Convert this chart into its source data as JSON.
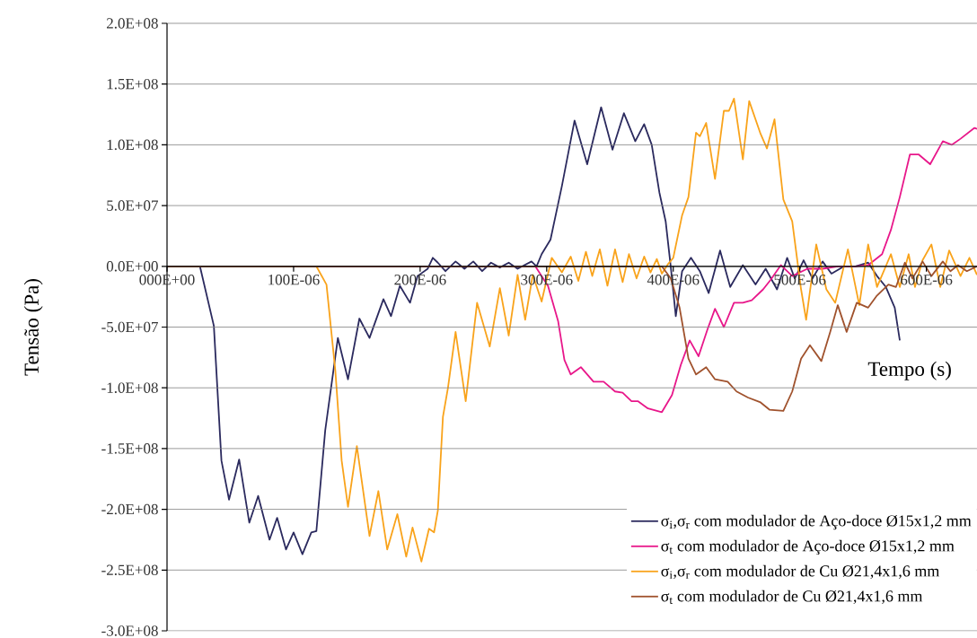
{
  "chart_data": {
    "type": "line",
    "xlabel": "Tempo (s)",
    "ylabel": "Tensão (Pa)",
    "xlim": [
      0,
      0.00064
    ],
    "ylim": [
      -300000000.0,
      200000000.0
    ],
    "xticks": [
      {
        "value": 0,
        "label": "000E+00"
      },
      {
        "value": 0.0001,
        "label": "100E-06"
      },
      {
        "value": 0.0002,
        "label": "200E-06"
      },
      {
        "value": 0.0003,
        "label": "300E-06"
      },
      {
        "value": 0.0004,
        "label": "400E-06"
      },
      {
        "value": 0.0005,
        "label": "500E-06"
      },
      {
        "value": 0.0006,
        "label": "600E-06"
      }
    ],
    "yticks": [
      {
        "value": -300000000.0,
        "label": "-3.0E+08"
      },
      {
        "value": -250000000.0,
        "label": "-2.5E+08"
      },
      {
        "value": -200000000.0,
        "label": "-2.0E+08"
      },
      {
        "value": -150000000.0,
        "label": "-1.5E+08"
      },
      {
        "value": -100000000.0,
        "label": "-1.0E+08"
      },
      {
        "value": -50000000.0,
        "label": "-5.0E+07"
      },
      {
        "value": 0,
        "label": "0.0E+00"
      },
      {
        "value": 50000000.0,
        "label": "5.0E+07"
      },
      {
        "value": 100000000.0,
        "label": "1.0E+08"
      },
      {
        "value": 150000000.0,
        "label": "1.5E+08"
      },
      {
        "value": 200000000.0,
        "label": "2.0E+08"
      }
    ],
    "grid": "y",
    "legend": "bottom right",
    "series": [
      {
        "name": "σ$_{i}$,σ$_{r}$  com modulador de Aço-doce Ø15x1,2 mm",
        "color": "#2b2a5e",
        "x": [
          0.0,
          2.6e-05,
          3.7e-05,
          4.3e-05,
          4.9e-05,
          5.7e-05,
          6.5e-05,
          7.2e-05,
          8.1e-05,
          8.7e-05,
          9.4e-05,
          0.0001,
          0.000107,
          0.000114,
          0.000118,
          0.000125,
          0.000135,
          0.000143,
          0.000152,
          0.00016,
          0.000171,
          0.000177,
          0.000184,
          0.000192,
          0.000198,
          0.000206,
          0.00021,
          0.000214,
          0.00022,
          0.000228,
          0.000235,
          0.000242,
          0.000249,
          0.000256,
          0.000263,
          0.00027,
          0.000277,
          0.000288,
          0.000292,
          0.000296,
          0.000303,
          0.000312,
          0.000322,
          0.000332,
          0.000343,
          0.000352,
          0.000361,
          0.00037,
          0.000377,
          0.000383,
          0.000389,
          0.000394,
          0.000398,
          0.000402,
          0.000407,
          0.000414,
          0.000421,
          0.000428,
          0.000437,
          0.000445,
          0.000455,
          0.000465,
          0.000473,
          0.000482,
          0.00049,
          0.000496,
          0.000503,
          0.00051,
          0.000518,
          0.000525,
          0.000535,
          0.000544,
          0.000554,
          0.000561,
          0.000568,
          0.000575,
          0.000579
        ],
        "values": [
          0,
          0,
          -49000000.0,
          -160000000.0,
          -192000000.0,
          -159000000.0,
          -211000000.0,
          -189000000.0,
          -225000000.0,
          -207000000.0,
          -233000000.0,
          -219000000.0,
          -237000000.0,
          -219000000.0,
          -218000000.0,
          -135000000.0,
          -59000000.0,
          -93000000.0,
          -43000000.0,
          -59000000.0,
          -27000000.0,
          -41000000.0,
          -16000000.0,
          -30000000.0,
          -8000000.0,
          -2000000.0,
          7000000.0,
          3000000.0,
          -4000000.0,
          4000000.0,
          -2000000.0,
          4000000.0,
          -4000000.0,
          3000000.0,
          -1000000.0,
          3000000.0,
          -2000000.0,
          4000000.0,
          0,
          10000000.0,
          22000000.0,
          66000000.0,
          120000000.0,
          84000000.0,
          131000000.0,
          96000000.0,
          126000000.0,
          103000000.0,
          117000000.0,
          100000000.0,
          61000000.0,
          37000000.0,
          0,
          -41000000.0,
          -4000000.0,
          7000000.0,
          -4000000.0,
          -22000000.0,
          13000000.0,
          -17000000.0,
          1000000.0,
          -15000000.0,
          -2000000.0,
          -19000000.0,
          7000000.0,
          -10000000.0,
          5000000.0,
          -10000000.0,
          4000000.0,
          -6000000.0,
          0,
          0,
          3000000.0,
          -8000000.0,
          -17000000.0,
          -34000000.0,
          -61000000.0
        ]
      },
      {
        "name": "σ$_{t}$  com modulador de Aço-doce Ø15x1,2 mm",
        "color": "#e8178a",
        "x": [
          0.0,
          0.000291,
          0.000301,
          0.000309,
          0.000314,
          0.000319,
          0.000327,
          0.000337,
          0.000345,
          0.000354,
          0.00036,
          0.000367,
          0.000372,
          0.00038,
          0.000391,
          0.000399,
          0.000406,
          0.000413,
          0.00042,
          0.000427,
          0.000433,
          0.00044,
          0.000448,
          0.000455,
          0.000462,
          0.000471,
          0.000477,
          0.000485,
          0.000494,
          0.000506,
          0.000518,
          0.00053,
          0.000544,
          0.000554,
          0.000565,
          0.000572,
          0.000579,
          0.000587,
          0.000594,
          0.000603,
          0.000613,
          0.00062,
          0.000627,
          0.000638,
          0.00064
        ],
        "values": [
          0,
          0,
          -16000000.0,
          -45000000.0,
          -77000000.0,
          -89000000.0,
          -83000000.0,
          -95000000.0,
          -95000000.0,
          -103000000.0,
          -104000000.0,
          -111000000.0,
          -111000000.0,
          -117000000.0,
          -120000000.0,
          -106000000.0,
          -81000000.0,
          -61000000.0,
          -74000000.0,
          -52000000.0,
          -35000000.0,
          -50000000.0,
          -30000000.0,
          -30000000.0,
          -28000000.0,
          -19000000.0,
          -11000000.0,
          1000000.0,
          -8000000.0,
          -2000000.0,
          -2000000.0,
          0,
          0,
          1000000.0,
          10000000.0,
          30000000.0,
          57000000.0,
          92000000.0,
          92000000.0,
          84000000.0,
          103000000.0,
          100000000.0,
          105000000.0,
          114000000.0,
          113000000.0
        ]
      },
      {
        "name": "σ$_{i}$,σ$_{r}$  com modulador de Cu Ø21,4x1,6 mm",
        "color": "#f9a31b",
        "x": [
          0.0,
          0.000118,
          0.000126,
          0.000133,
          0.000138,
          0.000143,
          0.00015,
          0.00016,
          0.000167,
          0.000174,
          0.000182,
          0.000189,
          0.000194,
          0.000201,
          0.000207,
          0.000211,
          0.000214,
          0.000218,
          0.000222,
          0.000228,
          0.000236,
          0.000245,
          0.000255,
          0.000263,
          0.00027,
          0.000277,
          0.000283,
          0.000289,
          0.000296,
          0.000304,
          0.000312,
          0.000319,
          0.000325,
          0.000331,
          0.000336,
          0.000342,
          0.000348,
          0.000354,
          0.00036,
          0.000365,
          0.000371,
          0.000377,
          0.000382,
          0.000387,
          0.000391,
          0.000396,
          0.0004,
          0.000407,
          0.000412,
          0.000418,
          0.000421,
          0.000426,
          0.000433,
          0.00044,
          0.000444,
          0.000448,
          0.000455,
          0.00046,
          0.000469,
          0.000474,
          0.00048,
          0.000487,
          0.000494,
          0.000501,
          0.000505,
          0.000513,
          0.000521,
          0.000528,
          0.000538,
          0.000547,
          0.000554,
          0.000561,
          0.000572,
          0.000579,
          0.000586,
          0.000591,
          0.000597,
          0.000604,
          0.000611,
          0.000618,
          0.000627,
          0.000634,
          0.00064
        ],
        "values": [
          0,
          0,
          -15000000.0,
          -86000000.0,
          -160000000.0,
          -198000000.0,
          -148000000.0,
          -222000000.0,
          -185000000.0,
          -233000000.0,
          -204000000.0,
          -239000000.0,
          -215000000.0,
          -243000000.0,
          -216000000.0,
          -219000000.0,
          -201000000.0,
          -124000000.0,
          -100000000.0,
          -54000000.0,
          -111000000.0,
          -30000000.0,
          -66000000.0,
          -18000000.0,
          -57000000.0,
          -7000000.0,
          -44000000.0,
          -7000000.0,
          -29000000.0,
          7000000.0,
          -5000000.0,
          8000000.0,
          -12000000.0,
          12000000.0,
          -8000000.0,
          14000000.0,
          -16000000.0,
          14000000.0,
          -13000000.0,
          10000000.0,
          -10000000.0,
          8000000.0,
          -5000000.0,
          6000000.0,
          -6000000.0,
          2000000.0,
          7000000.0,
          42000000.0,
          57000000.0,
          110000000.0,
          107000000.0,
          118000000.0,
          72000000.0,
          128000000.0,
          128000000.0,
          138000000.0,
          88000000.0,
          136000000.0,
          109000000.0,
          97000000.0,
          121000000.0,
          55000000.0,
          37000000.0,
          -19000000.0,
          -44000000.0,
          18000000.0,
          -19000000.0,
          -30000000.0,
          14000000.0,
          -32000000.0,
          18000000.0,
          -17000000.0,
          10000000.0,
          -17000000.0,
          10000000.0,
          -17000000.0,
          5000000.0,
          18000000.0,
          -17000000.0,
          13000000.0,
          -8000000.0,
          7000000.0,
          -7000000.0
        ]
      },
      {
        "name": "σ$_{t}$  com modulador de Cu Ø21,4x1,6 mm",
        "color": "#a0522d",
        "x": [
          0.0,
          0.000391,
          0.000398,
          0.000405,
          0.000412,
          0.000418,
          0.000426,
          0.000433,
          0.000443,
          0.00045,
          0.000459,
          0.000469,
          0.000476,
          0.000487,
          0.000494,
          0.000501,
          0.000508,
          0.000517,
          0.000524,
          0.00053,
          0.000537,
          0.000545,
          0.000554,
          0.000561,
          0.00057,
          0.000576,
          0.000583,
          0.000589,
          0.000597,
          0.000604,
          0.000613,
          0.000619,
          0.000625,
          0.000632,
          0.00064
        ],
        "values": [
          0,
          0,
          -10000000.0,
          -34000000.0,
          -76000000.0,
          -89000000.0,
          -83000000.0,
          -93000000.0,
          -95000000.0,
          -103000000.0,
          -108000000.0,
          -112000000.0,
          -118000000.0,
          -119000000.0,
          -103000000.0,
          -76000000.0,
          -65000000.0,
          -78000000.0,
          -54000000.0,
          -32000000.0,
          -54000000.0,
          -30000000.0,
          -34000000.0,
          -24000000.0,
          -15000000.0,
          -17000000.0,
          3000000.0,
          -10000000.0,
          4000000.0,
          -8000000.0,
          4000000.0,
          -4000000.0,
          1000000.0,
          -4000000.0,
          0
        ]
      }
    ]
  }
}
